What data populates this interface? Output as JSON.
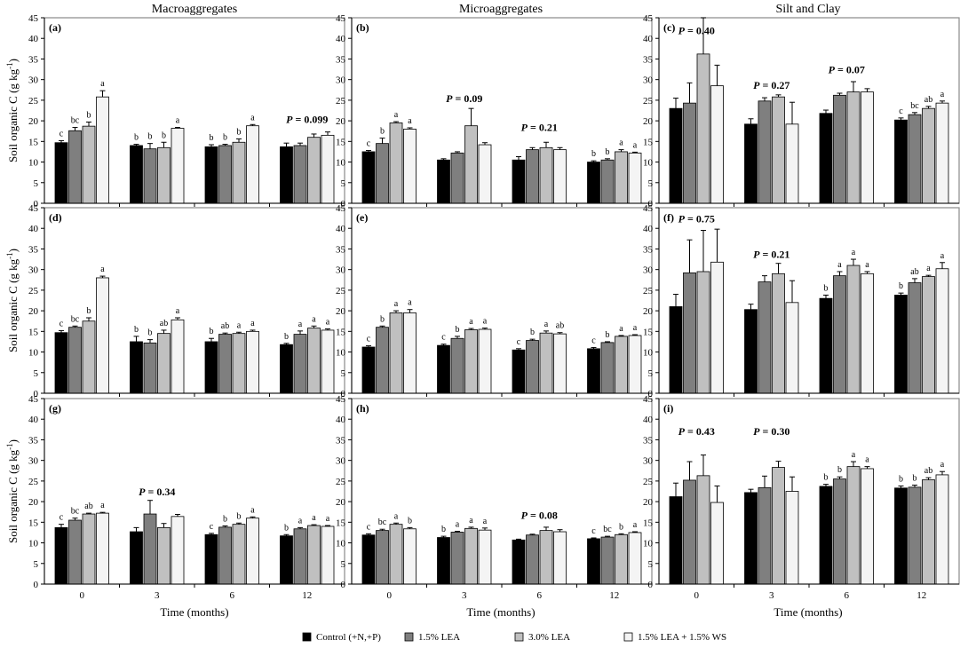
{
  "column_titles": [
    "Macroaggregates",
    "Microaggregates",
    "Silt and Clay"
  ],
  "ylabel_main": "Soil organic C (g kg",
  "ylabel_sup": "-1",
  "ylabel_end": ")",
  "xlabel": "Time (months)",
  "colors": {
    "Control (+N,+P)": "#000000",
    "1.5% LEA": "#7f7f7f",
    "3.0% LEA": "#c0c0c0",
    "1.5% LEA + 1.5% WS": "#f4f4f4",
    "edge": "#000000"
  },
  "legend": [
    {
      "label": "Control (+N,+P)",
      "color": "#000000"
    },
    {
      "label": "1.5% LEA",
      "color": "#7f7f7f"
    },
    {
      "label": "3.0% LEA",
      "color": "#c0c0c0"
    },
    {
      "label": "1.5% LEA + 1.5% WS",
      "color": "#f4f4f4"
    }
  ],
  "chart_data": [
    {
      "type": "bar",
      "id": "(a)",
      "column": "Macroaggregates",
      "categories": [
        "0",
        "3",
        "6",
        "12"
      ],
      "ylim": [
        0,
        45
      ],
      "yticks": [
        0,
        5,
        10,
        15,
        20,
        25,
        30,
        35,
        40,
        45
      ],
      "series": [
        {
          "name": "Control (+N,+P)",
          "values": [
            14.7,
            14.0,
            13.7,
            13.7
          ],
          "errors": [
            0.5,
            0.3,
            0.5,
            0.9
          ]
        },
        {
          "name": "1.5% LEA",
          "values": [
            17.6,
            13.2,
            14.0,
            14.0
          ],
          "errors": [
            0.8,
            1.3,
            0.3,
            0.6
          ]
        },
        {
          "name": "3.0% LEA",
          "values": [
            18.7,
            13.5,
            14.8,
            16.0
          ],
          "errors": [
            1.0,
            1.3,
            0.8,
            0.8
          ]
        },
        {
          "name": "1.5% LEA + 1.5% WS",
          "values": [
            25.8,
            18.2,
            18.8,
            16.5
          ],
          "errors": [
            1.5,
            0.2,
            0.3,
            0.8
          ]
        }
      ],
      "letters": [
        [
          "c",
          "bc",
          "b",
          "a"
        ],
        [
          "b",
          "b",
          "b",
          "a"
        ],
        [
          "b",
          "b",
          "b",
          "a"
        ],
        [
          "",
          "",
          "",
          ""
        ]
      ],
      "pvalues": [
        {
          "group": 3,
          "text": "P = 0.099",
          "y": 19.5
        }
      ]
    },
    {
      "type": "bar",
      "id": "(b)",
      "column": "Microaggregates",
      "categories": [
        "0",
        "3",
        "6",
        "12"
      ],
      "ylim": [
        0,
        45
      ],
      "yticks": [
        0,
        5,
        10,
        15,
        20,
        25,
        30,
        35,
        40,
        45
      ],
      "series": [
        {
          "name": "Control (+N,+P)",
          "values": [
            12.5,
            10.5,
            10.5,
            10.0
          ],
          "errors": [
            0.3,
            0.3,
            0.8,
            0.3
          ]
        },
        {
          "name": "1.5% LEA",
          "values": [
            14.5,
            12.2,
            13.0,
            10.5
          ],
          "errors": [
            1.3,
            0.3,
            0.5,
            0.3
          ]
        },
        {
          "name": "3.0% LEA",
          "values": [
            19.5,
            18.8,
            13.5,
            12.5
          ],
          "errors": [
            0.3,
            4.2,
            1.3,
            0.5
          ]
        },
        {
          "name": "1.5% LEA + 1.5% WS",
          "values": [
            18.0,
            14.2,
            13.0,
            12.2
          ],
          "errors": [
            0.3,
            0.5,
            0.5,
            0.2
          ]
        }
      ],
      "letters": [
        [
          "c",
          "b",
          "a",
          "a"
        ],
        [
          "",
          "",
          "",
          ""
        ],
        [
          "",
          "",
          "",
          ""
        ],
        [
          "b",
          "b",
          "a",
          "a"
        ]
      ],
      "pvalues": [
        {
          "group": 1,
          "text": "P = 0.09",
          "y": 24.5
        },
        {
          "group": 2,
          "text": "P = 0.21",
          "y": 17.5
        }
      ]
    },
    {
      "type": "bar",
      "id": "(c)",
      "column": "Silt and Clay",
      "categories": [
        "0",
        "3",
        "6",
        "12"
      ],
      "ylim": [
        0,
        45
      ],
      "yticks": [
        0,
        5,
        10,
        15,
        20,
        25,
        30,
        35,
        40,
        45
      ],
      "series": [
        {
          "name": "Control (+N,+P)",
          "values": [
            23.0,
            19.2,
            21.8,
            20.2
          ],
          "errors": [
            2.5,
            1.3,
            0.8,
            0.5
          ]
        },
        {
          "name": "1.5% LEA",
          "values": [
            24.3,
            24.8,
            26.2,
            21.5
          ],
          "errors": [
            4.9,
            0.8,
            0.5,
            0.5
          ]
        },
        {
          "name": "3.0% LEA",
          "values": [
            36.2,
            25.8,
            27.0,
            23.0
          ],
          "errors": [
            8.8,
            0.5,
            2.5,
            0.5
          ]
        },
        {
          "name": "1.5% LEA + 1.5% WS",
          "values": [
            28.5,
            19.2,
            27.0,
            24.3
          ],
          "errors": [
            5.0,
            5.3,
            0.8,
            0.5
          ]
        }
      ],
      "letters": [
        [
          "",
          "",
          "",
          ""
        ],
        [
          "",
          "",
          "",
          ""
        ],
        [
          "",
          "",
          "",
          ""
        ],
        [
          "c",
          "bc",
          "ab",
          "a"
        ]
      ],
      "pvalues": [
        {
          "group": 0,
          "text": "P = 0.40",
          "y": 41.0
        },
        {
          "group": 1,
          "text": "P = 0.27",
          "y": 27.8
        },
        {
          "group": 2,
          "text": "P = 0.07",
          "y": 31.5
        }
      ]
    },
    {
      "type": "bar",
      "id": "(d)",
      "column": "Macroaggregates",
      "categories": [
        "0",
        "3",
        "6",
        "12"
      ],
      "ylim": [
        0,
        45
      ],
      "yticks": [
        0,
        5,
        10,
        15,
        20,
        25,
        30,
        35,
        40,
        45
      ],
      "series": [
        {
          "name": "Control (+N,+P)",
          "values": [
            14.7,
            12.5,
            12.5,
            11.8
          ],
          "errors": [
            0.5,
            1.3,
            0.8,
            0.3
          ]
        },
        {
          "name": "1.5% LEA",
          "values": [
            16.0,
            12.2,
            14.3,
            14.3
          ],
          "errors": [
            0.3,
            0.8,
            0.3,
            0.8
          ]
        },
        {
          "name": "3.0% LEA",
          "values": [
            17.5,
            14.5,
            14.5,
            15.8
          ],
          "errors": [
            0.8,
            0.8,
            0.3,
            0.5
          ]
        },
        {
          "name": "1.5% LEA + 1.5% WS",
          "values": [
            28.0,
            17.8,
            15.0,
            15.3
          ],
          "errors": [
            0.4,
            0.5,
            0.3,
            0.3
          ]
        }
      ],
      "letters": [
        [
          "c",
          "bc",
          "b",
          "a"
        ],
        [
          "b",
          "b",
          "ab",
          "a"
        ],
        [
          "b",
          "ab",
          "a",
          "a"
        ],
        [
          "b",
          "a",
          "a",
          "a"
        ]
      ],
      "pvalues": []
    },
    {
      "type": "bar",
      "id": "(e)",
      "column": "Microaggregates",
      "categories": [
        "0",
        "3",
        "6",
        "12"
      ],
      "ylim": [
        0,
        45
      ],
      "yticks": [
        0,
        5,
        10,
        15,
        20,
        25,
        30,
        35,
        40,
        45
      ],
      "series": [
        {
          "name": "Control (+N,+P)",
          "values": [
            11.2,
            11.6,
            10.5,
            10.8
          ],
          "errors": [
            0.3,
            0.3,
            0.3,
            0.3
          ]
        },
        {
          "name": "1.5% LEA",
          "values": [
            16.0,
            13.3,
            12.8,
            12.3
          ],
          "errors": [
            0.3,
            0.5,
            0.3,
            0.2
          ]
        },
        {
          "name": "3.0% LEA",
          "values": [
            19.5,
            15.4,
            14.6,
            13.8
          ],
          "errors": [
            0.5,
            0.3,
            0.5,
            0.2
          ]
        },
        {
          "name": "1.5% LEA + 1.5% WS",
          "values": [
            19.5,
            15.5,
            14.4,
            14.0
          ],
          "errors": [
            0.8,
            0.3,
            0.3,
            0.2
          ]
        }
      ],
      "letters": [
        [
          "c",
          "b",
          "a",
          "a"
        ],
        [
          "c",
          "b",
          "a",
          "a"
        ],
        [
          "c",
          "b",
          "a",
          "ab"
        ],
        [
          "c",
          "b",
          "a",
          "a"
        ]
      ],
      "pvalues": []
    },
    {
      "type": "bar",
      "id": "(f)",
      "column": "Silt and Clay",
      "categories": [
        "0",
        "3",
        "6",
        "12"
      ],
      "ylim": [
        0,
        45
      ],
      "yticks": [
        0,
        5,
        10,
        15,
        20,
        25,
        30,
        35,
        40,
        45
      ],
      "series": [
        {
          "name": "Control (+N,+P)",
          "values": [
            21.0,
            20.3,
            23.0,
            23.8
          ],
          "errors": [
            3.0,
            1.3,
            0.8,
            0.5
          ]
        },
        {
          "name": "1.5% LEA",
          "values": [
            29.2,
            27.0,
            28.5,
            26.8
          ],
          "errors": [
            8.0,
            1.5,
            1.0,
            1.0
          ]
        },
        {
          "name": "3.0% LEA",
          "values": [
            29.5,
            29.0,
            31.0,
            28.3
          ],
          "errors": [
            10.0,
            2.5,
            1.5,
            0.3
          ]
        },
        {
          "name": "1.5% LEA + 1.5% WS",
          "values": [
            31.8,
            22.0,
            29.0,
            30.2
          ],
          "errors": [
            8.0,
            5.3,
            0.5,
            1.5
          ]
        }
      ],
      "letters": [
        [
          "",
          "",
          "",
          ""
        ],
        [
          "",
          "",
          "",
          ""
        ],
        [
          "b",
          "a",
          "a",
          "a"
        ],
        [
          "b",
          "ab",
          "a",
          "a"
        ]
      ],
      "pvalues": [
        {
          "group": 0,
          "text": "P = 0.75",
          "y": 41.5
        },
        {
          "group": 1,
          "text": "P = 0.21",
          "y": 32.8
        }
      ]
    },
    {
      "type": "bar",
      "id": "(g)",
      "column": "Macroaggregates",
      "categories": [
        "0",
        "3",
        "6",
        "12"
      ],
      "ylim": [
        0,
        45
      ],
      "yticks": [
        0,
        5,
        10,
        15,
        20,
        25,
        30,
        35,
        40,
        45
      ],
      "series": [
        {
          "name": "Control (+N,+P)",
          "values": [
            13.7,
            12.7,
            12.0,
            11.7
          ],
          "errors": [
            0.8,
            1.0,
            0.3,
            0.3
          ]
        },
        {
          "name": "1.5% LEA",
          "values": [
            15.5,
            17.0,
            13.8,
            13.4
          ],
          "errors": [
            0.5,
            3.3,
            0.3,
            0.3
          ]
        },
        {
          "name": "3.0% LEA",
          "values": [
            17.0,
            13.7,
            14.5,
            14.2
          ],
          "errors": [
            0.2,
            1.0,
            0.3,
            0.2
          ]
        },
        {
          "name": "1.5% LEA + 1.5% WS",
          "values": [
            17.2,
            16.4,
            16.0,
            14.0
          ],
          "errors": [
            0.2,
            0.5,
            0.3,
            0.2
          ]
        }
      ],
      "letters": [
        [
          "c",
          "bc",
          "ab",
          "a"
        ],
        [
          "",
          "",
          "",
          ""
        ],
        [
          "c",
          "b",
          "b",
          "a"
        ],
        [
          "b",
          "a",
          "a",
          "a"
        ]
      ],
      "pvalues": [
        {
          "group": 1,
          "text": "P = 0.34",
          "y": 21.5
        }
      ]
    },
    {
      "type": "bar",
      "id": "(h)",
      "column": "Microaggregates",
      "categories": [
        "0",
        "3",
        "6",
        "12"
      ],
      "ylim": [
        0,
        45
      ],
      "yticks": [
        0,
        5,
        10,
        15,
        20,
        25,
        30,
        35,
        40,
        45
      ],
      "series": [
        {
          "name": "Control (+N,+P)",
          "values": [
            11.9,
            11.3,
            10.7,
            11.0
          ],
          "errors": [
            0.3,
            0.3,
            0.2,
            0.2
          ]
        },
        {
          "name": "1.5% LEA",
          "values": [
            13.0,
            12.6,
            11.9,
            11.4
          ],
          "errors": [
            0.3,
            0.2,
            0.2,
            0.2
          ]
        },
        {
          "name": "3.0% LEA",
          "values": [
            14.5,
            13.5,
            13.0,
            12.0
          ],
          "errors": [
            0.3,
            0.3,
            0.8,
            0.2
          ]
        },
        {
          "name": "1.5% LEA + 1.5% WS",
          "values": [
            13.4,
            13.1,
            12.7,
            12.5
          ],
          "errors": [
            0.3,
            0.5,
            0.5,
            0.2
          ]
        }
      ],
      "letters": [
        [
          "c",
          "bc",
          "a",
          "b"
        ],
        [
          "b",
          "a",
          "a",
          "a"
        ],
        [
          "",
          "",
          "",
          ""
        ],
        [
          "c",
          "bc",
          "b",
          "a"
        ]
      ],
      "pvalues": [
        {
          "group": 2,
          "text": "P = 0.08",
          "y": 15.8
        }
      ]
    },
    {
      "type": "bar",
      "id": "(i)",
      "column": "Silt and Clay",
      "categories": [
        "0",
        "3",
        "6",
        "12"
      ],
      "ylim": [
        0,
        45
      ],
      "yticks": [
        0,
        5,
        10,
        15,
        20,
        25,
        30,
        35,
        40,
        45
      ],
      "series": [
        {
          "name": "Control (+N,+P)",
          "values": [
            21.2,
            22.2,
            23.7,
            23.3
          ],
          "errors": [
            3.3,
            0.8,
            0.5,
            0.5
          ]
        },
        {
          "name": "1.5% LEA",
          "values": [
            25.2,
            23.4,
            25.5,
            23.5
          ],
          "errors": [
            4.5,
            2.8,
            0.5,
            0.5
          ]
        },
        {
          "name": "3.0% LEA",
          "values": [
            26.3,
            28.3,
            28.5,
            25.3
          ],
          "errors": [
            5.0,
            1.5,
            1.2,
            0.5
          ]
        },
        {
          "name": "1.5% LEA + 1.5% WS",
          "values": [
            19.8,
            22.5,
            28.0,
            26.5
          ],
          "errors": [
            4.0,
            3.5,
            0.5,
            0.8
          ]
        }
      ],
      "letters": [
        [
          "",
          "",
          "",
          ""
        ],
        [
          "",
          "",
          "",
          ""
        ],
        [
          "b",
          "b",
          "a",
          "a"
        ],
        [
          "b",
          "b",
          "ab",
          "a"
        ]
      ],
      "pvalues": [
        {
          "group": 0,
          "text": "P = 0.43",
          "y": 36.2
        },
        {
          "group": 1,
          "text": "P = 0.30",
          "y": 36.2
        }
      ]
    }
  ]
}
